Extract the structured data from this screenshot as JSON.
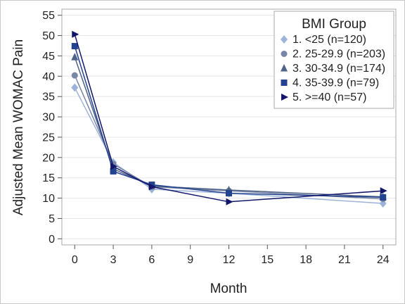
{
  "chart_data": {
    "type": "line",
    "title": "",
    "xlabel": "Month",
    "ylabel": "Adjusted Mean WOMAC Pain",
    "x": [
      0,
      3,
      6,
      12,
      24
    ],
    "xticks": [
      0,
      3,
      6,
      9,
      12,
      15,
      18,
      21,
      24
    ],
    "yticks": [
      0,
      5,
      10,
      15,
      20,
      25,
      30,
      35,
      40,
      45,
      50,
      55
    ],
    "xlim": [
      -1,
      25
    ],
    "ylim": [
      -1.5,
      56.5
    ],
    "grid": "horizontal",
    "legend": {
      "title": "BMI Group",
      "placement": "top-right"
    },
    "series": [
      {
        "name": "1. <25 (n=120)",
        "values": [
          37.2,
          18.8,
          12.2,
          11.2,
          8.7
        ],
        "color": "#9db3d9",
        "marker": "diamond"
      },
      {
        "name": "2. 25-29.9 (n=203)",
        "values": [
          40.2,
          18.4,
          12.8,
          11.8,
          9.8
        ],
        "color": "#7986a6",
        "marker": "circle"
      },
      {
        "name": "3. 30-34.9 (n=174)",
        "values": [
          44.7,
          17.2,
          13.0,
          12.0,
          10.3
        ],
        "color": "#4f6287",
        "marker": "triangle"
      },
      {
        "name": "4. 35-39.9 (n=79)",
        "values": [
          47.4,
          16.6,
          13.3,
          11.2,
          10.2
        ],
        "color": "#24438f",
        "marker": "square"
      },
      {
        "name": "5. >=40 (n=57)",
        "values": [
          50.3,
          17.8,
          12.8,
          9.1,
          11.8
        ],
        "color": "#12166b",
        "marker": "triangle-right"
      }
    ]
  }
}
